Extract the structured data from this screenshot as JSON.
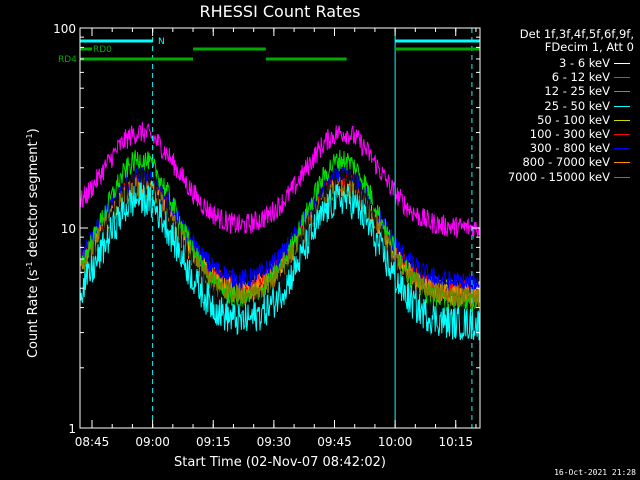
{
  "window": {
    "title": "RHESSI Count Rates"
  },
  "timestamp": "16-Oct-2021 21:28",
  "chart_data": {
    "type": "line",
    "title": "RHESSI Count Rates",
    "xlabel": "Start Time (02-Nov-07 08:42:02)",
    "ylabel_parts": [
      "Count Rate (s",
      "-1",
      " detector segment",
      "-1",
      ")"
    ],
    "y_scale": "log",
    "ylim": [
      1,
      100
    ],
    "x_domain": [
      "08:42:02",
      "10:21:00"
    ],
    "x_ticks": [
      "08:45",
      "09:00",
      "09:15",
      "09:30",
      "09:45",
      "10:00",
      "10:15"
    ],
    "y_ticks": [
      "1",
      "10",
      "100"
    ],
    "legend_header": [
      "Det 1f,3f,4f,5f,6f,9f,",
      "FDecim 1, Att 0"
    ],
    "legend_placement": "right",
    "x_minor_step_min": 5,
    "series": [
      {
        "name": "3 - 6 keV",
        "color": "#000000",
        "peak_times": [
          "08:57",
          "09:47"
        ],
        "peak_value": 17,
        "min_value": 3.5
      },
      {
        "name": "6 - 12 keV",
        "color": "#ff00ff",
        "peak_times": [
          "08:57",
          "09:47"
        ],
        "peak_value": 30,
        "min_value": 10
      },
      {
        "name": "12 - 25 keV",
        "color": "#00dd00",
        "peak_times": [
          "08:57",
          "09:47"
        ],
        "peak_value": 22,
        "min_value": 4.2
      },
      {
        "name": "25 - 50 keV",
        "color": "#00ffff",
        "peak_times": [
          "08:57",
          "09:47"
        ],
        "peak_value": 14,
        "min_value": 3.3
      },
      {
        "name": "50 - 100 keV",
        "color": "#d8d800",
        "peak_times": [
          "08:57",
          "09:47"
        ],
        "peak_value": 16,
        "min_value": 4.8
      },
      {
        "name": "100 - 300 keV",
        "color": "#ff0000",
        "peak_times": [
          "08:57",
          "09:47"
        ],
        "peak_value": 17,
        "min_value": 4.8
      },
      {
        "name": "300 - 800 keV",
        "color": "#0000ff",
        "peak_times": [
          "08:57",
          "09:47"
        ],
        "peak_value": 18,
        "min_value": 5.3
      },
      {
        "name": "800 - 7000 keV",
        "color": "#ff8800",
        "peak_times": [
          "08:57",
          "09:47"
        ],
        "peak_value": 16,
        "min_value": 4.5
      },
      {
        "name": "7000 - 15000 keV",
        "color": "#808000",
        "peak_times": [
          "08:57",
          "09:47"
        ],
        "peak_value": 16,
        "min_value": 4.5
      }
    ],
    "draw_order": [
      4,
      5,
      1,
      6,
      7,
      2,
      8,
      0,
      3
    ],
    "flag_bars": [
      {
        "label": "N",
        "color": "#00ffff",
        "intervals": [
          [
            "08:42:02",
            "09:00:00"
          ],
          [
            "10:00:00",
            "10:21:00"
          ]
        ]
      },
      {
        "label": "RD0",
        "color": "#00aa00",
        "intervals": [
          [
            "08:42:02",
            "08:45:00"
          ],
          [
            "09:10:00",
            "09:28:00"
          ],
          [
            "10:00:00",
            "10:21:00"
          ]
        ]
      },
      {
        "label": "RD4",
        "color": "#00aa00",
        "intervals": [
          [
            "08:42:02",
            "09:10:00"
          ],
          [
            "09:28:00",
            "09:48:00"
          ]
        ]
      }
    ],
    "marker_lines": [
      {
        "time": "08:42:02",
        "style": "solid",
        "color": "#00ffff"
      },
      {
        "time": "09:00:00",
        "style": "dashed",
        "color": "#00ffff"
      },
      {
        "time": "10:00:00",
        "style": "solid",
        "color": "#00ffff"
      },
      {
        "time": "10:19:00",
        "style": "dashed",
        "color": "#00ffff"
      }
    ]
  }
}
